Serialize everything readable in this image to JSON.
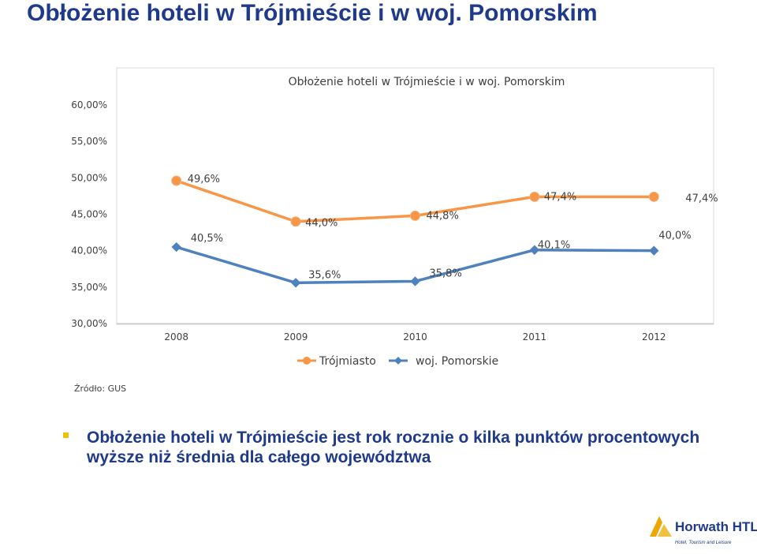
{
  "page": {
    "title": "Obłożenie hoteli w Trójmieście i w woj. Pomorskim",
    "source": "Źródło: GUS",
    "bullet": "Obłożenie hoteli w Trójmieście jest rok rocznie o kilka punktów procentowych wyższe niż średnia dla całego województwa"
  },
  "logo": {
    "name": "Horwath HTL",
    "tagline": "Hotel, Tourism and Leisure",
    "accent_color": "#f0a500",
    "brand_color": "#1f3a8a"
  },
  "chart_data": {
    "type": "line",
    "title": "Obłożenie hoteli w Trójmieście i w woj. Pomorskim",
    "categories": [
      "2008",
      "2009",
      "2010",
      "2011",
      "2012"
    ],
    "series": [
      {
        "name": "Trójmiasto",
        "values": [
          49.6,
          44.0,
          44.8,
          47.4,
          47.4
        ],
        "labels": [
          "49,6%",
          "44,0%",
          "44,8%",
          "47,4%",
          "47,4%"
        ],
        "color": "#f79646",
        "marker": "circle"
      },
      {
        "name": "woj. Pomorskie",
        "values": [
          40.5,
          35.6,
          35.8,
          40.1,
          40.0
        ],
        "labels": [
          "40,5%",
          "35,6%",
          "35,8%",
          "40,1%",
          "40,0%"
        ],
        "color": "#4f81bd",
        "marker": "diamond"
      }
    ],
    "yticks": [
      30,
      35,
      40,
      45,
      50,
      55,
      60
    ],
    "ytick_labels": [
      "30,00%",
      "35,00%",
      "40,00%",
      "45,00%",
      "50,00%",
      "55,00%",
      "60,00%"
    ],
    "ylim": [
      30,
      60
    ],
    "grid": false,
    "legend_position": "bottom"
  }
}
